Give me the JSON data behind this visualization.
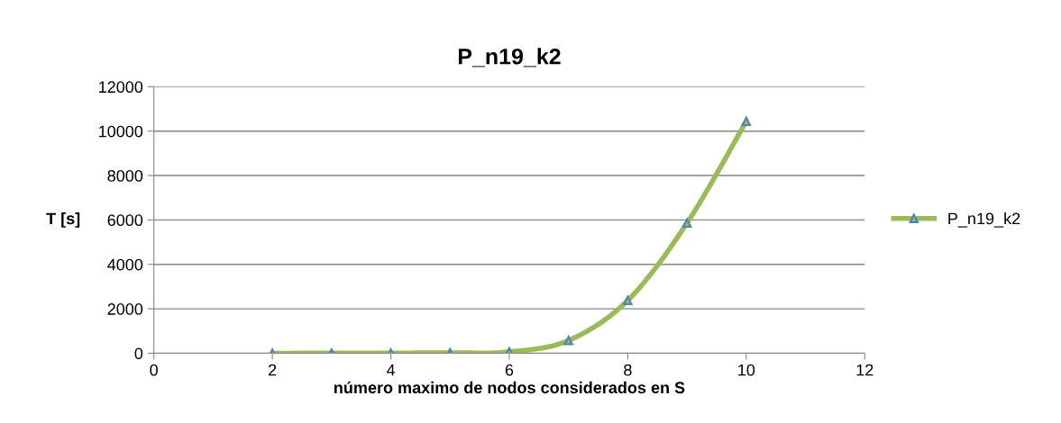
{
  "chart_data": {
    "type": "line",
    "title": "P_n19_k2",
    "xlabel": "número maximo de nodos considerados en S",
    "ylabel": "T [s]",
    "x": [
      2,
      3,
      4,
      5,
      6,
      7,
      8,
      9,
      10
    ],
    "series": [
      {
        "name": "P_n19_k2",
        "color": "#9bbb59",
        "values": [
          0,
          5,
          10,
          20,
          60,
          575,
          2380,
          5860,
          10440
        ]
      }
    ],
    "xlim": [
      0,
      12
    ],
    "xticks": [
      0,
      2,
      4,
      6,
      8,
      10,
      12
    ],
    "ylim": [
      0,
      12000
    ],
    "yticks": [
      0,
      2000,
      4000,
      6000,
      8000,
      10000,
      12000
    ],
    "grid": "y",
    "legend": "right",
    "marker": "triangle",
    "line_style": "solid"
  }
}
